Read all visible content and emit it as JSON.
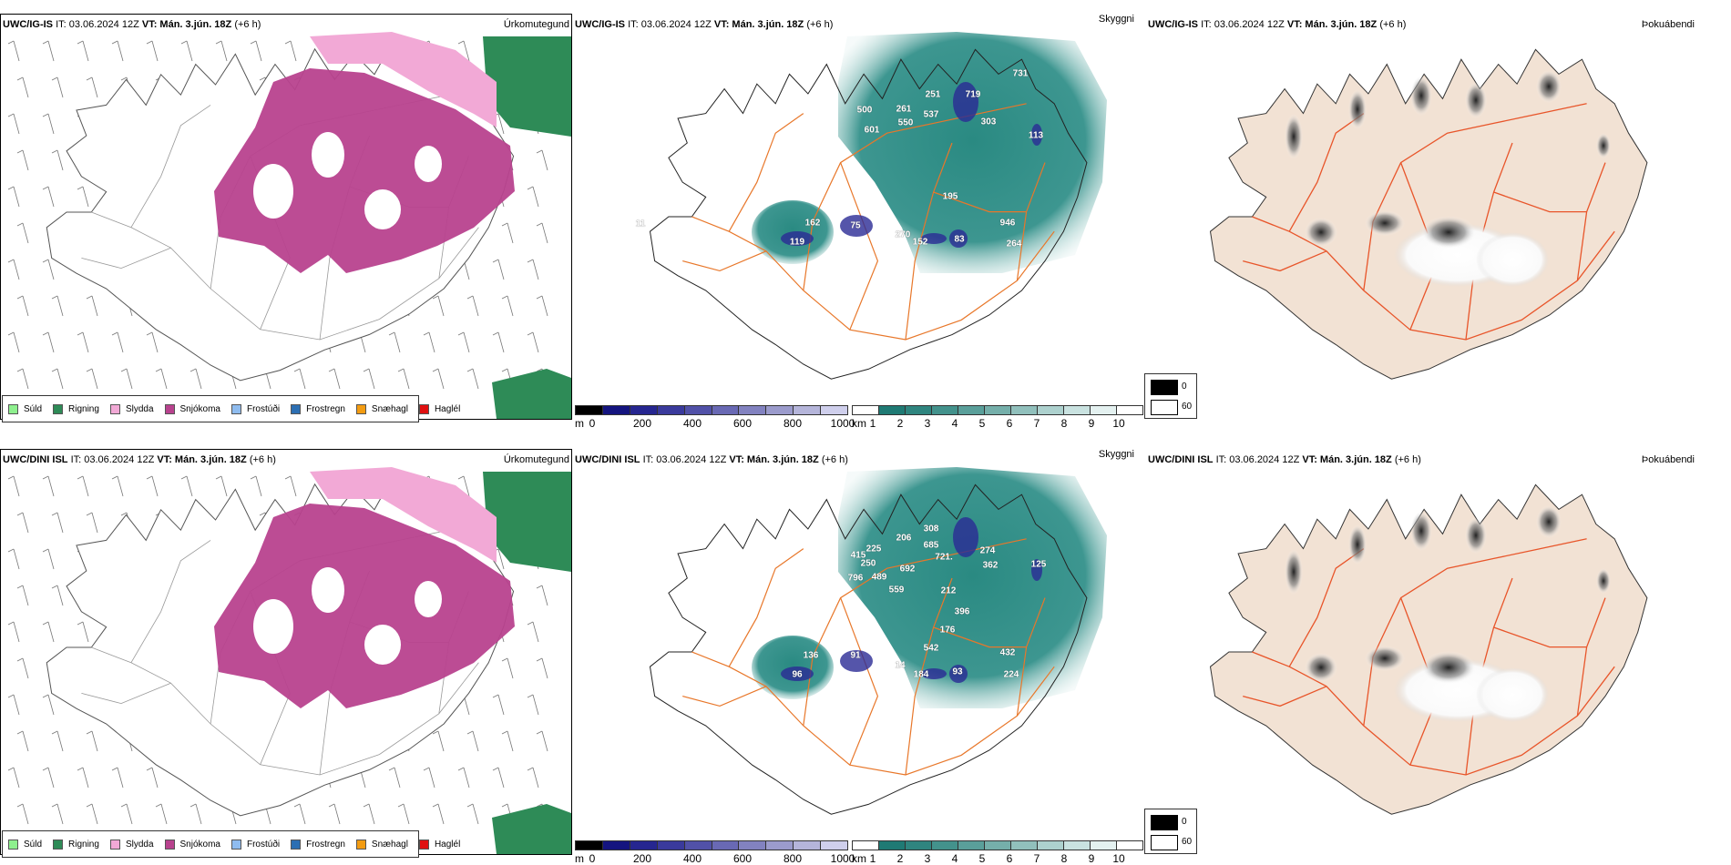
{
  "rows": [
    {
      "model": "UWC/IG-IS",
      "it": "IT: 03.06.2024 12Z",
      "vt": "VT: Mán. 3.jún. 18Z",
      "lead": "(+6 h)",
      "visibility_labels": [
        "500",
        "261",
        "251",
        "537",
        "719",
        "303",
        "731",
        "113",
        "601",
        "550",
        "11",
        "162",
        "119",
        "75",
        "270",
        "152",
        "83",
        "195",
        "946",
        "264"
      ]
    },
    {
      "model": "UWC/DINI ISL",
      "it": "IT: 03.06.2024 12Z",
      "vt": "VT: Mán. 3.jún. 18Z",
      "lead": "(+6 h)",
      "visibility_labels": [
        "308",
        "206",
        "415",
        "225",
        "250",
        "796",
        "489",
        "692",
        "685",
        "721.",
        "274",
        "362",
        "125",
        "559",
        "212",
        "396",
        "176",
        "136",
        "96",
        "91",
        "542",
        "14",
        "184",
        "93",
        "432",
        "224"
      ]
    }
  ],
  "panel_titles": {
    "precip_type": "Úrkomutegund",
    "visibility": "Skyggni",
    "fog": "Þokuábendi"
  },
  "precip_legend": [
    {
      "label": "Súld",
      "color": "#8ef08e"
    },
    {
      "label": "Rigning",
      "color": "#2e8b57"
    },
    {
      "label": "Slydda",
      "color": "#f2a9d6"
    },
    {
      "label": "Snjókoma",
      "color": "#b8428e"
    },
    {
      "label": "Frostúði",
      "color": "#8fbcef"
    },
    {
      "label": "Frostregn",
      "color": "#2c6fb3"
    },
    {
      "label": "Snæhagl",
      "color": "#f39c12"
    },
    {
      "label": "Haglél",
      "color": "#e01010"
    }
  ],
  "height_bar": {
    "unit": "m",
    "ticks": [
      "0",
      "200",
      "400",
      "600",
      "800",
      "1000"
    ],
    "colors": [
      "#000000",
      "#14147f",
      "#262690",
      "#3a3a9c",
      "#5151a8",
      "#6969b4",
      "#8282c0",
      "#9b9bcc",
      "#b5b5da",
      "#cfcfec"
    ]
  },
  "km_bar": {
    "unit": "km",
    "ticks": [
      "1",
      "2",
      "3",
      "4",
      "5",
      "6",
      "7",
      "8",
      "9",
      "10"
    ],
    "colors": [
      "#ffffff",
      "#1f7a74",
      "#2f857f",
      "#43928c",
      "#5a9f9a",
      "#75afaa",
      "#91c0bc",
      "#add1ce",
      "#c9e2e0",
      "#e4f1f0",
      "#ffffff"
    ]
  },
  "fog_legend": [
    {
      "label": "0",
      "color": "#000000"
    },
    {
      "label": "60",
      "color": "#ffffff"
    }
  ],
  "colors": {
    "teal": "#2a8a82",
    "road": "#e8772a",
    "land_beige": "#f2e2d4",
    "snow": "#b8428e",
    "sleet": "#f2a9d6",
    "rain": "#2e8b57"
  }
}
